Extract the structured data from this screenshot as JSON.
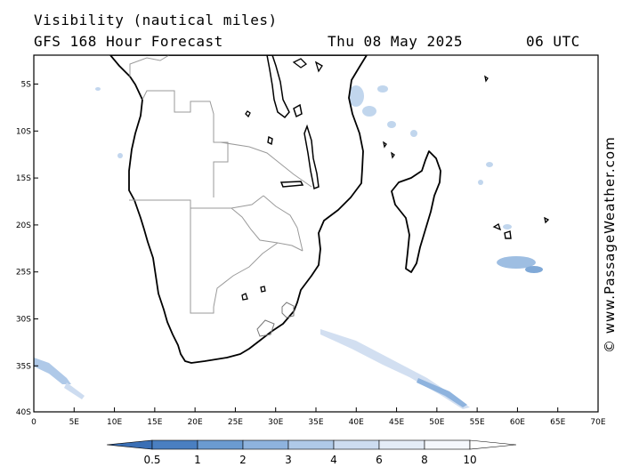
{
  "header": {
    "title": "Visibility (nautical miles)",
    "subtitle": "GFS 168 Hour Forecast",
    "date": "Thu 08 May 2025",
    "time": "06 UTC"
  },
  "axes": {
    "lat_labels": [
      "5S",
      "10S",
      "15S",
      "20S",
      "25S",
      "30S",
      "35S",
      "40S"
    ],
    "lon_labels": [
      "0",
      "5E",
      "10E",
      "15E",
      "20E",
      "25E",
      "30E",
      "35E",
      "40E",
      "45E",
      "50E",
      "55E",
      "60E",
      "65E",
      "70E"
    ]
  },
  "colorbar": {
    "labels": [
      "0.5",
      "1",
      "2",
      "3",
      "4",
      "6",
      "8",
      "10"
    ],
    "colors": [
      "#4a7fc1",
      "#6b9bd1",
      "#8eb3de",
      "#afc9e8",
      "#cddcf0",
      "#e4ecf7",
      "#f4f7fc"
    ]
  },
  "credit": "© www.PassageWeather.com",
  "colors": {
    "land_outline": "#000000",
    "border": "#999999",
    "low_vis": "#9dbde3"
  }
}
